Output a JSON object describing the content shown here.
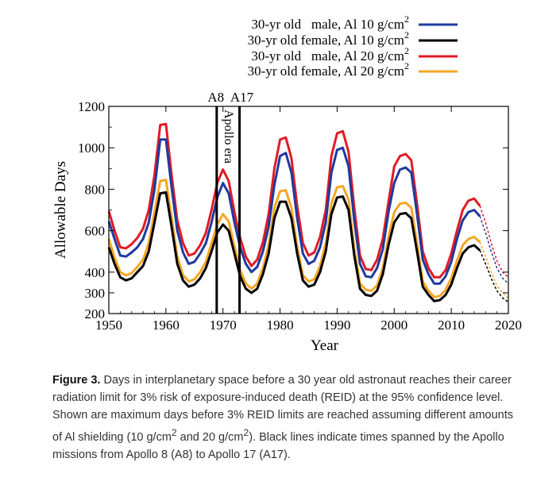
{
  "chart_data": {
    "type": "line",
    "xlabel": "Year",
    "ylabel": "Allowable Days",
    "xlim": [
      1950,
      2020
    ],
    "ylim": [
      200,
      1200
    ],
    "xticks": [
      1950,
      1960,
      1970,
      1980,
      1990,
      2000,
      2010,
      2020
    ],
    "yticks": [
      200,
      300,
      400,
      600,
      800,
      1000,
      1200
    ],
    "grid": false,
    "legend_position": "top-right, above plot",
    "x": [
      1950,
      1951,
      1952,
      1953,
      1954,
      1955,
      1956,
      1957,
      1958,
      1959,
      1960,
      1961,
      1962,
      1963,
      1964,
      1965,
      1966,
      1967,
      1968,
      1969,
      1970,
      1971,
      1972,
      1973,
      1974,
      1975,
      1976,
      1977,
      1978,
      1979,
      1980,
      1981,
      1982,
      1983,
      1984,
      1985,
      1986,
      1987,
      1988,
      1989,
      1990,
      1991,
      1992,
      1993,
      1994,
      1995,
      1996,
      1997,
      1998,
      1999,
      2000,
      2001,
      2002,
      2003,
      2004,
      2005,
      2006,
      2007,
      2008,
      2009,
      2010,
      2011,
      2012,
      2013,
      2014,
      2015,
      2016,
      2017,
      2018,
      2019,
      2020
    ],
    "solid_until": 2015,
    "dashed_after_note": "projection",
    "series": [
      {
        "name": "30-yr old   male, Al 10 g/cm",
        "superscript": "2",
        "color": "#1f3a9e",
        "values": [
          645,
          560,
          480,
          475,
          495,
          520,
          560,
          640,
          800,
          1040,
          1040,
          810,
          600,
          495,
          440,
          450,
          490,
          540,
          640,
          760,
          830,
          780,
          640,
          520,
          440,
          400,
          425,
          500,
          620,
          820,
          960,
          975,
          880,
          660,
          490,
          440,
          455,
          520,
          640,
          880,
          990,
          1000,
          910,
          650,
          440,
          380,
          375,
          420,
          510,
          690,
          830,
          895,
          905,
          880,
          680,
          460,
          390,
          345,
          345,
          380,
          450,
          560,
          650,
          690,
          700,
          670,
          590,
          500,
          420,
          370,
          345
        ]
      },
      {
        "name": "30-yr old female, Al 10 g/cm",
        "superscript": "2",
        "color": "#000000",
        "values": [
          520,
          440,
          375,
          360,
          370,
          400,
          430,
          500,
          640,
          780,
          785,
          620,
          440,
          360,
          330,
          340,
          370,
          420,
          500,
          590,
          630,
          600,
          490,
          380,
          320,
          300,
          320,
          390,
          490,
          660,
          740,
          740,
          660,
          490,
          360,
          330,
          340,
          400,
          500,
          680,
          760,
          765,
          700,
          480,
          320,
          290,
          285,
          310,
          390,
          530,
          640,
          680,
          685,
          660,
          500,
          330,
          290,
          260,
          265,
          290,
          340,
          420,
          490,
          520,
          530,
          505,
          440,
          370,
          310,
          275,
          255
        ]
      },
      {
        "name": "30-yr old   male, Al 20 g/cm",
        "superscript": "2",
        "color": "#e01b24",
        "values": [
          695,
          600,
          520,
          515,
          535,
          565,
          610,
          700,
          870,
          1110,
          1115,
          870,
          650,
          540,
          480,
          490,
          530,
          590,
          700,
          830,
          895,
          840,
          690,
          565,
          475,
          430,
          460,
          545,
          680,
          900,
          1040,
          1050,
          950,
          720,
          540,
          480,
          495,
          570,
          700,
          960,
          1070,
          1080,
          980,
          710,
          480,
          415,
          410,
          460,
          560,
          740,
          910,
          960,
          970,
          940,
          730,
          500,
          420,
          375,
          375,
          410,
          490,
          600,
          700,
          745,
          755,
          720,
          640,
          540,
          455,
          400,
          375
        ]
      },
      {
        "name": "30-yr old female, Al 20 g/cm",
        "superscript": "2",
        "color": "#f5a623",
        "values": [
          560,
          470,
          400,
          385,
          395,
          425,
          460,
          540,
          690,
          840,
          845,
          665,
          475,
          385,
          355,
          365,
          400,
          450,
          540,
          630,
          680,
          645,
          525,
          410,
          345,
          320,
          345,
          420,
          530,
          710,
          790,
          795,
          710,
          525,
          385,
          355,
          365,
          430,
          540,
          730,
          810,
          815,
          750,
          515,
          345,
          315,
          310,
          335,
          420,
          570,
          690,
          730,
          735,
          710,
          540,
          355,
          310,
          280,
          285,
          315,
          370,
          455,
          530,
          560,
          570,
          545,
          475,
          400,
          335,
          300,
          275
        ]
      }
    ],
    "annotations": [
      {
        "text": "A8",
        "x": 1968.9
      },
      {
        "text": "A17",
        "x": 1972.9
      },
      {
        "text": "Apollo era",
        "orientation": "vertical"
      }
    ]
  },
  "caption": {
    "label": "Figure 3.",
    "text_parts": [
      " Days in interplanetary space before a 30 year old astronaut reaches their career radiation limit for 3% risk of exposure-induced death (REID) at the 95% confidence level. Shown are maximum days before 3% REID limits are reached assuming different amounts of Al shielding (10 g/cm",
      "2",
      " and 20 g/cm",
      "2",
      "). Black lines indicate times spanned by the Apollo missions from Apollo 8 (A8) to Apollo 17 (A17)."
    ]
  }
}
